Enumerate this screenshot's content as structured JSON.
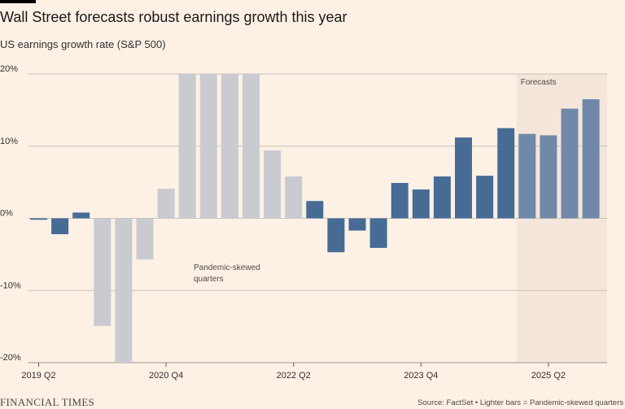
{
  "header": {
    "title": "Wall Street forecasts robust earnings growth this year",
    "subtitle": "US earnings growth rate (S&P 500)"
  },
  "footer": {
    "brand": "FINANCIAL TIMES",
    "source": "Source: FactSet • Lighter bars = Pandemic-skewed quarters"
  },
  "colors": {
    "background": "#fdf1e6",
    "actual": "#466c96",
    "forecast": "#7089a8",
    "pandemic": "#c9cbd0",
    "grid": "#ccc1b7",
    "forecast_shade": "#f4e6da"
  },
  "chart_data": {
    "type": "bar",
    "title": "Wall Street forecasts robust earnings growth this year",
    "ylabel": "US earnings growth rate (S&P 500)",
    "ylim": [
      -20,
      20
    ],
    "yticks": [
      -20,
      -10,
      0,
      10,
      20
    ],
    "ytick_labels": [
      "-20%",
      "-10%",
      "0%",
      "10%",
      "20%"
    ],
    "x_tick_labels": [
      {
        "index": 0,
        "label": "2019 Q2"
      },
      {
        "index": 6,
        "label": "2020 Q4"
      },
      {
        "index": 12,
        "label": "2022 Q2"
      },
      {
        "index": 18,
        "label": "2023 Q4"
      },
      {
        "index": 24,
        "label": "2025 Q2"
      }
    ],
    "categories": [
      "2019 Q2",
      "2019 Q3",
      "2019 Q4",
      "2020 Q1",
      "2020 Q2",
      "2020 Q3",
      "2020 Q4",
      "2021 Q1",
      "2021 Q2",
      "2021 Q3",
      "2021 Q4",
      "2022 Q1",
      "2022 Q2",
      "2022 Q3",
      "2022 Q4",
      "2023 Q1",
      "2023 Q2",
      "2023 Q3",
      "2023 Q4",
      "2024 Q1",
      "2024 Q2",
      "2024 Q3",
      "2024 Q4",
      "2025 Q1",
      "2025 Q2",
      "2025 Q3",
      "2025 Q4"
    ],
    "values": [
      -0.2,
      -2.2,
      0.8,
      -14.9,
      -20.0,
      -5.7,
      4.1,
      20.0,
      20.0,
      20.0,
      20.0,
      9.4,
      5.8,
      2.4,
      -4.7,
      -1.7,
      -4.1,
      4.9,
      4.0,
      5.8,
      11.2,
      5.9,
      12.5,
      11.7,
      11.5,
      15.2,
      16.5
    ],
    "bar_types": [
      "actual",
      "actual",
      "actual",
      "pandemic",
      "pandemic",
      "pandemic",
      "pandemic",
      "pandemic",
      "pandemic",
      "pandemic",
      "pandemic",
      "pandemic",
      "pandemic",
      "actual",
      "actual",
      "actual",
      "actual",
      "actual",
      "actual",
      "actual",
      "actual",
      "actual",
      "actual",
      "forecast",
      "forecast",
      "forecast",
      "forecast"
    ],
    "forecast_start_index": 23,
    "annotations": {
      "forecasts": "Forecasts",
      "pandemic_line1": "Pandemic-skewed",
      "pandemic_line2": "quarters"
    },
    "legend": "Lighter bars = Pandemic-skewed quarters"
  }
}
